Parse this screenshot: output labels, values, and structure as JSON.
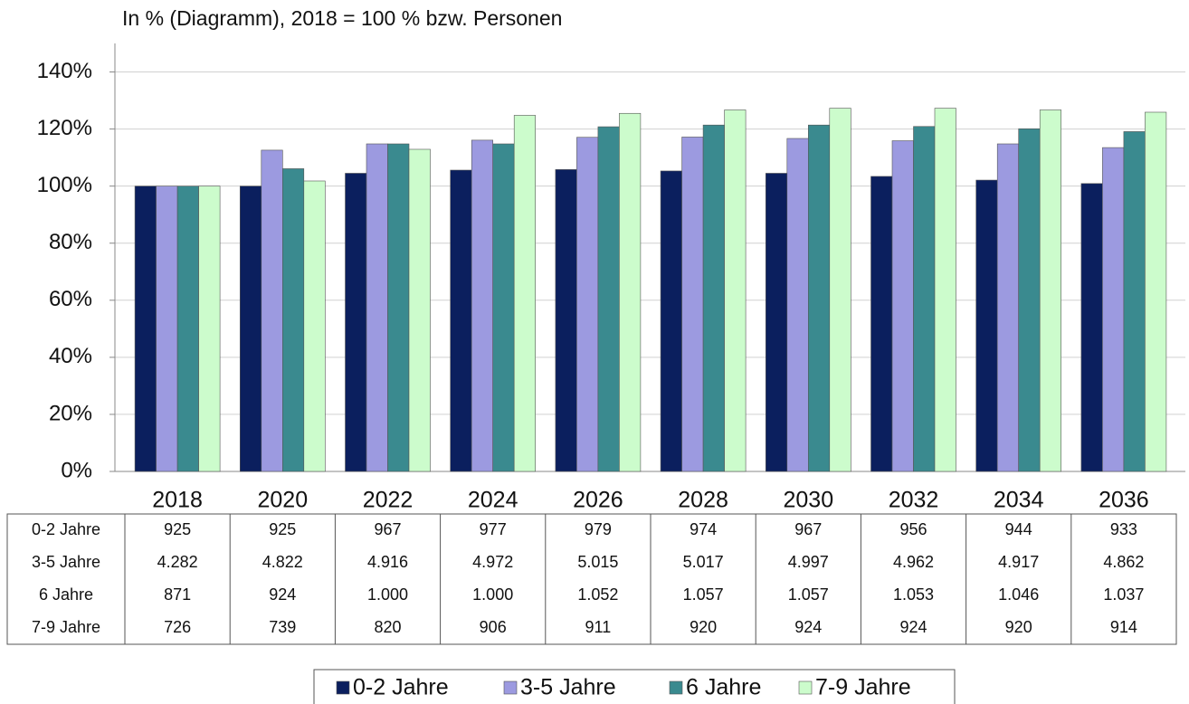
{
  "chart_data": {
    "type": "bar",
    "title": "In % (Diagramm), 2018 = 100 % bzw. Personen",
    "categories": [
      "2018",
      "2020",
      "2022",
      "2024",
      "2026",
      "2028",
      "2030",
      "2032",
      "2034",
      "2036"
    ],
    "series": [
      {
        "name": "0-2 Jahre",
        "color": "#0b1f5e",
        "values": [
          100,
          100,
          104.5,
          105.6,
          105.8,
          105.3,
          104.5,
          103.4,
          102.1,
          100.9
        ],
        "table_values": [
          "925",
          "925",
          "967",
          "977",
          "979",
          "974",
          "967",
          "956",
          "944",
          "933"
        ]
      },
      {
        "name": "3-5 Jahre",
        "color": "#9c9ae0",
        "values": [
          100,
          112.6,
          114.8,
          116.1,
          117.1,
          117.2,
          116.7,
          115.9,
          114.8,
          113.5
        ],
        "table_values": [
          "4.282",
          "4.822",
          "4.916",
          "4.972",
          "5.015",
          "5.017",
          "4.997",
          "4.962",
          "4.917",
          "4.862"
        ]
      },
      {
        "name": "6 Jahre",
        "color": "#3a8a8f",
        "values": [
          100,
          106.1,
          114.8,
          114.8,
          120.8,
          121.4,
          121.4,
          120.9,
          120.1,
          119.1
        ],
        "table_values": [
          "871",
          "924",
          "1.000",
          "1.000",
          "1.052",
          "1.057",
          "1.057",
          "1.053",
          "1.046",
          "1.037"
        ]
      },
      {
        "name": "7-9 Jahre",
        "color": "#ccfccc",
        "values": [
          100,
          101.8,
          112.9,
          124.8,
          125.5,
          126.7,
          127.3,
          127.3,
          126.7,
          125.9
        ],
        "table_values": [
          "726",
          "739",
          "820",
          "906",
          "911",
          "920",
          "924",
          "924",
          "920",
          "914"
        ]
      }
    ],
    "ylim": [
      0,
      150
    ],
    "yticks": [
      {
        "value": 0,
        "label": "0%"
      },
      {
        "value": 20,
        "label": "20%"
      },
      {
        "value": 40,
        "label": "40%"
      },
      {
        "value": 60,
        "label": "60%"
      },
      {
        "value": 80,
        "label": "80%"
      },
      {
        "value": 100,
        "label": "100%"
      },
      {
        "value": 120,
        "label": "120%"
      },
      {
        "value": 140,
        "label": "140%"
      }
    ],
    "grid": true
  }
}
